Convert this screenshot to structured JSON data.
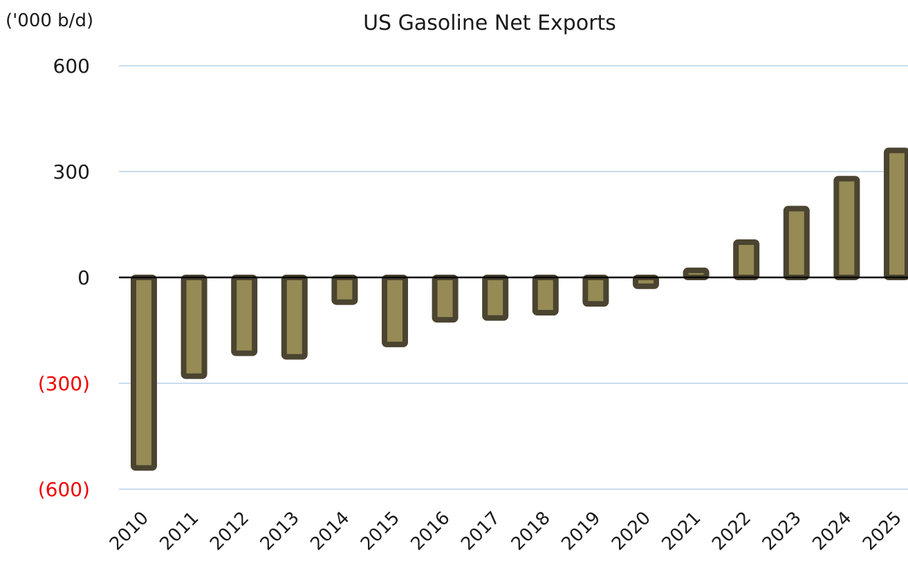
{
  "chart_data": {
    "type": "bar",
    "title": "US Gasoline Net Exports",
    "unit_label": "('000 b/d)",
    "categories": [
      "2010",
      "2011",
      "2012",
      "2013",
      "2014",
      "2015",
      "2016",
      "2017",
      "2018",
      "2019",
      "2020",
      "2021",
      "2022",
      "2023",
      "2024",
      "2025"
    ],
    "series": [
      {
        "values": [
          -540,
          -280,
          -215,
          -225,
          -70,
          -190,
          -120,
          -115,
          -100,
          -75,
          -25,
          20,
          100,
          195,
          280,
          360
        ]
      }
    ],
    "ylim": [
      -600,
      600
    ],
    "yticks": [
      600,
      300,
      0,
      -300,
      -600
    ],
    "ytick_labels": [
      "600",
      "300",
      "0",
      "(300)",
      "(600)"
    ],
    "grid": true,
    "colors": {
      "bar_fill": "#968a55",
      "bar_outline": "#4a4430",
      "positive_tick": "#1a1a1a",
      "negative_tick": "#ee0000"
    }
  }
}
